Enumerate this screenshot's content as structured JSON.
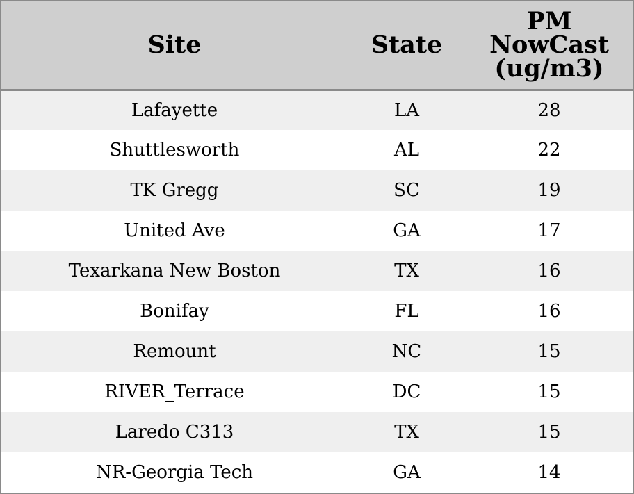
{
  "chart_data": {
    "type": "table",
    "columns": [
      "Site",
      "State",
      "PM NowCast (ug/m3)"
    ],
    "header_lines": {
      "site": "Site",
      "state": "State",
      "value": [
        "PM",
        "NowCast",
        "(ug/m3)"
      ]
    },
    "rows": [
      {
        "site": "Lafayette",
        "state": "LA",
        "value": 28
      },
      {
        "site": "Shuttlesworth",
        "state": "AL",
        "value": 22
      },
      {
        "site": "TK Gregg",
        "state": "SC",
        "value": 19
      },
      {
        "site": "United Ave",
        "state": "GA",
        "value": 17
      },
      {
        "site": "Texarkana New Boston",
        "state": "TX",
        "value": 16
      },
      {
        "site": "Bonifay",
        "state": "FL",
        "value": 16
      },
      {
        "site": "Remount",
        "state": "NC",
        "value": 15
      },
      {
        "site": "RIVER_Terrace",
        "state": "DC",
        "value": 15
      },
      {
        "site": "Laredo C313",
        "state": "TX",
        "value": 15
      },
      {
        "site": "NR-Georgia Tech",
        "state": "GA",
        "value": 14
      }
    ]
  },
  "colors": {
    "header_background": "#cfcfcf",
    "row_alt_background": "#efefef",
    "row_background": "#ffffff",
    "border": "#8a8a8a"
  }
}
